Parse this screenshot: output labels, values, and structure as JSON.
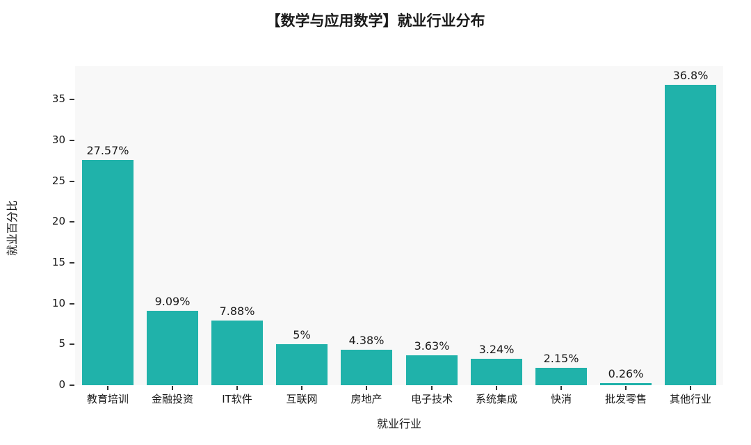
{
  "chart_data": {
    "type": "bar",
    "title": "【数学与应用数学】就业行业分布",
    "xlabel": "就业行业",
    "ylabel": "就业百分比",
    "categories": [
      "教育培训",
      "金融投资",
      "IT软件",
      "互联网",
      "房地产",
      "电子技术",
      "系统集成",
      "快消",
      "批发零售",
      "其他行业"
    ],
    "values": [
      27.57,
      9.09,
      7.88,
      5,
      4.38,
      3.63,
      3.24,
      2.15,
      0.26,
      36.8
    ],
    "value_labels": [
      "27.57%",
      "9.09%",
      "7.88%",
      "5%",
      "4.38%",
      "3.63%",
      "3.24%",
      "2.15%",
      "0.26%",
      "36.8%"
    ],
    "yticks": [
      0,
      5,
      10,
      15,
      20,
      25,
      30,
      35
    ],
    "ylim": [
      0,
      39.1
    ],
    "grid": false,
    "legend": "none",
    "bar_color": "#20b2aa",
    "plot_bg_color": "#f8f8f8",
    "text_color": "#1a1a1a"
  }
}
